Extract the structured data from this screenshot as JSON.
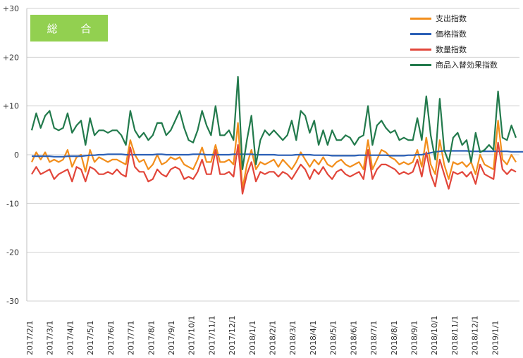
{
  "badge": {
    "label": "総 合",
    "color": "#92d050"
  },
  "legend": [
    {
      "name": "支出指数",
      "color": "#f28e1c"
    },
    {
      "name": "価格指数",
      "color": "#2a5fb6"
    },
    {
      "name": "数量指数",
      "color": "#e2463a"
    },
    {
      "name": "商品入替効果指数",
      "color": "#227a4c"
    }
  ],
  "chart_data": {
    "type": "line",
    "title": "総 合",
    "ylim": [
      -30,
      30
    ],
    "y_ticks": [
      "+30",
      "+20",
      "+10",
      "0",
      "-10",
      "-20",
      "-30"
    ],
    "x_tick_labels": [
      "2017/2/1",
      "2017/3/1",
      "2017/4/1",
      "2017/5/1",
      "2017/6/1",
      "2017/7/1",
      "2017/8/1",
      "2017/9/1",
      "2017/10/1",
      "2017/11/1",
      "2017/12/1",
      "2018/1/1",
      "2018/2/1",
      "2018/3/1",
      "2018/4/1",
      "2018/5/1",
      "2018/6/1",
      "2018/7/1",
      "2018/8/1",
      "2018/9/1",
      "2018/10/1",
      "2018/11/1",
      "2018/12/1",
      "2019/1/1"
    ],
    "grid": true,
    "legend_position": "top-right",
    "series": [
      {
        "name": "支出指数",
        "color": "#f28e1c",
        "values": [
          -1.5,
          0.5,
          -1,
          0.5,
          -1.5,
          -1,
          -1.5,
          -1,
          1,
          -2.5,
          -0.5,
          0,
          -3.5,
          1,
          -1.5,
          -0.5,
          -1,
          -1.5,
          -1,
          -1,
          -1.5,
          -2,
          3,
          0,
          -1.5,
          -1,
          -3,
          -2,
          0,
          -2,
          -1.5,
          -0.5,
          -1,
          -0.5,
          -2,
          -2.5,
          -3,
          -1,
          1.5,
          -1.5,
          -1.5,
          2,
          -1.5,
          -1.5,
          -1,
          -2,
          6.5,
          -7,
          -2,
          1,
          -3,
          -1.5,
          -2,
          -1.5,
          -1,
          -2.5,
          -1,
          -2,
          -3,
          -1.5,
          0.5,
          -1,
          -2.5,
          -1,
          -2,
          -0.5,
          -2,
          -2.5,
          -1.5,
          -1,
          -2,
          -2.5,
          -2,
          -1.5,
          -3,
          3,
          -3,
          -1,
          1,
          0.5,
          -0.5,
          -1,
          -2,
          -1.5,
          -2,
          -1.5,
          1,
          -2.5,
          3.5,
          -2,
          -4,
          3,
          -2,
          -5,
          -1.5,
          -2,
          -1.5,
          -2.5,
          -1.5,
          -4,
          0,
          -2,
          -2.5,
          -3,
          7,
          -1,
          -2,
          0,
          -1.5
        ]
      },
      {
        "name": "価格指数",
        "color": "#2a5fb6",
        "values": [
          -0.3,
          -0.3,
          -0.3,
          -0.3,
          -0.3,
          -0.4,
          -0.4,
          -0.4,
          -0.3,
          -0.3,
          -0.3,
          -0.3,
          -0.2,
          -0.1,
          -0.1,
          0,
          0,
          0.1,
          0.1,
          0.1,
          0.1,
          0,
          0,
          0,
          0,
          0,
          0,
          0,
          0.1,
          0.1,
          0,
          0,
          0,
          0,
          0,
          0,
          0.1,
          0.1,
          0.1,
          0,
          0,
          0,
          0,
          0,
          0,
          0.1,
          0.1,
          0.1,
          0.1,
          0.1,
          0,
          0,
          0,
          0,
          0,
          -0.1,
          -0.1,
          -0.1,
          -0.1,
          0,
          0,
          0,
          0,
          -0.1,
          -0.1,
          -0.1,
          -0.1,
          -0.2,
          -0.2,
          -0.2,
          -0.2,
          -0.2,
          -0.2,
          -0.1,
          -0.1,
          -0.1,
          -0.1,
          -0.1,
          -0.1,
          -0.1,
          -0.2,
          -0.2,
          -0.2,
          -0.2,
          -0.1,
          -0.1,
          0,
          0,
          0.2,
          0.4,
          0.6,
          0.7,
          0.8,
          0.8,
          0.8,
          0.8,
          0.8,
          0.8,
          0.7,
          0.7,
          0.7,
          0.7,
          0.7,
          0.7,
          0.7,
          0.7,
          0.7,
          0.6,
          0.6,
          0.6,
          0.6
        ]
      },
      {
        "name": "数量指数",
        "color": "#e2463a",
        "values": [
          -4,
          -2.5,
          -4,
          -3.5,
          -3,
          -5,
          -4,
          -3.5,
          -3,
          -5.5,
          -2.5,
          -3,
          -5.5,
          -2.5,
          -3,
          -4,
          -4,
          -3.5,
          -4,
          -3,
          -4,
          -4.5,
          1.5,
          -2.5,
          -3.5,
          -3.5,
          -5.5,
          -5,
          -3,
          -4,
          -4.5,
          -3,
          -2.5,
          -3,
          -5,
          -4.5,
          -5,
          -3.5,
          -1,
          -4,
          -4,
          1,
          -4,
          -4,
          -3.5,
          -4.5,
          2,
          -8,
          -4,
          -1.5,
          -5.5,
          -3.5,
          -4,
          -3.5,
          -3.5,
          -4.5,
          -3.5,
          -4,
          -5,
          -3.5,
          -2,
          -3,
          -5,
          -3,
          -4,
          -2.5,
          -4,
          -5,
          -3.5,
          -3,
          -4,
          -4.5,
          -4,
          -3.5,
          -5,
          1,
          -5,
          -3,
          -2,
          -2,
          -2.5,
          -3,
          -4,
          -3.5,
          -4,
          -3.5,
          -1,
          -4.5,
          0.5,
          -4,
          -6.5,
          -1,
          -4,
          -7,
          -3.5,
          -4,
          -3.5,
          -4.5,
          -3.5,
          -6,
          -2,
          -4,
          -4.5,
          -5,
          2.5,
          -3,
          -4,
          -3,
          -3.5
        ]
      },
      {
        "name": "商品入替効果指数",
        "color": "#227a4c",
        "values": [
          5,
          8.5,
          5.5,
          8,
          9,
          5.5,
          5,
          5.5,
          8.5,
          4.5,
          6,
          7,
          2,
          7.5,
          4,
          5,
          5,
          4.5,
          5,
          5,
          4,
          2,
          9,
          5,
          3.5,
          4.5,
          3,
          4,
          6.5,
          6.5,
          4,
          5,
          7,
          9,
          5.5,
          3,
          2.5,
          5,
          9,
          6,
          4,
          10,
          4,
          4,
          5,
          3,
          16,
          -3,
          3,
          8,
          -2,
          3,
          5,
          4,
          5,
          4,
          3,
          4,
          7,
          3,
          9,
          8,
          4.5,
          7,
          2,
          5,
          2,
          5,
          3,
          3,
          4,
          3.5,
          2,
          3.5,
          4,
          10,
          2,
          6,
          7,
          5.5,
          4.5,
          5,
          3,
          3.5,
          3,
          3,
          7.5,
          3,
          12,
          4,
          -1,
          11.5,
          1,
          -1.5,
          3.5,
          4.5,
          2,
          3,
          -1.5,
          4.5,
          0.5,
          1,
          2,
          1,
          13,
          3.5,
          3,
          6,
          3.5
        ]
      }
    ]
  }
}
